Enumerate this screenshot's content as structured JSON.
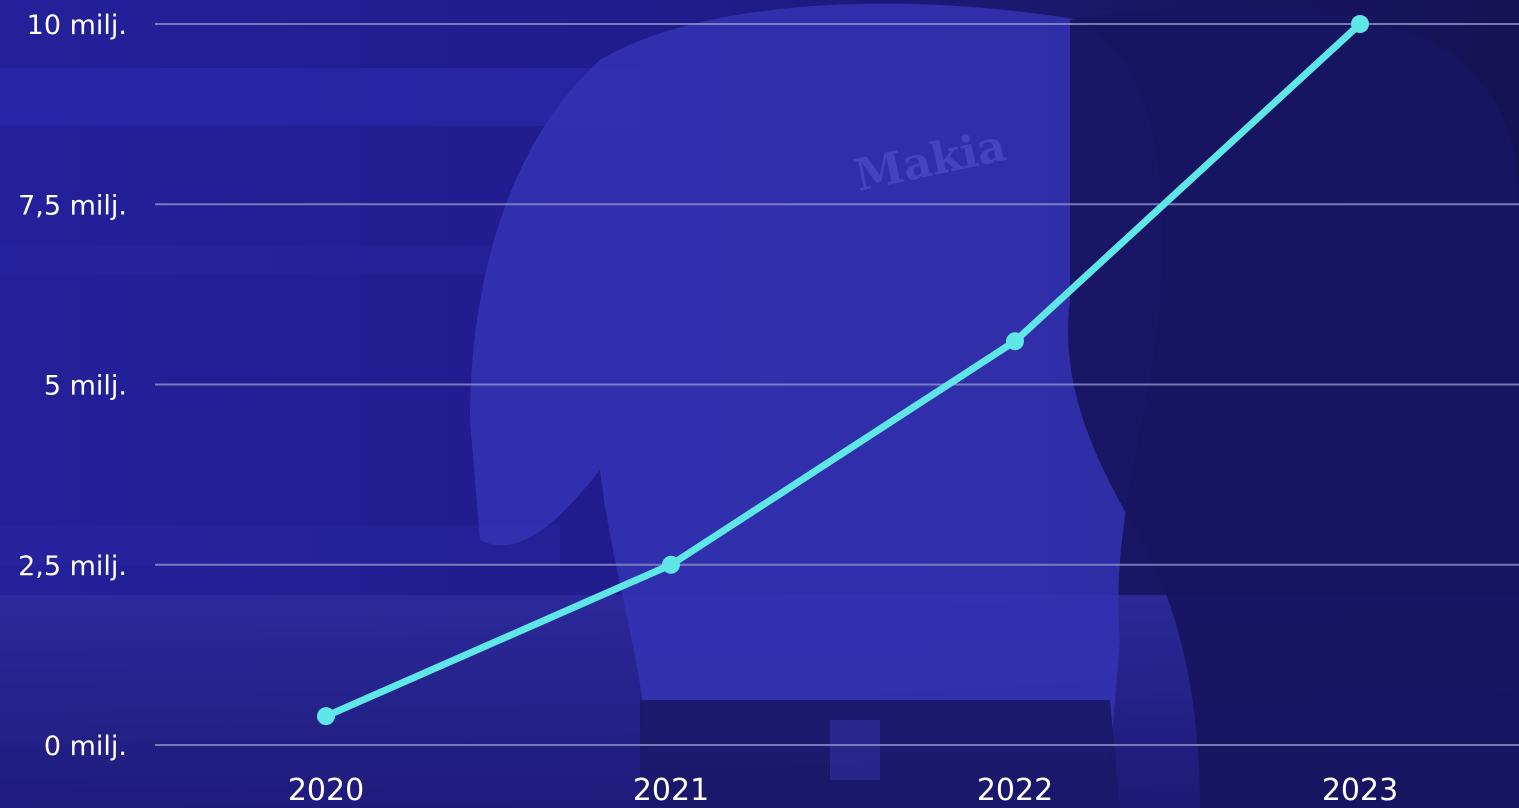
{
  "background": {
    "photo_icon": "people-photo-icon",
    "shirt_logo": "Makia"
  },
  "colors": {
    "background": "#1d1a80",
    "line": "#5fe6e6",
    "grid": "#8a8ac4",
    "text": "#ffffff"
  },
  "chart_data": {
    "type": "line",
    "x": [
      "2020",
      "2021",
      "2022",
      "2023"
    ],
    "series": [
      {
        "values": [
          0.4,
          2.5,
          5.6,
          10
        ]
      }
    ],
    "ylim": [
      0,
      10
    ],
    "yticks": [
      {
        "value": 0,
        "label": "0 milj."
      },
      {
        "value": 2.5,
        "label": "2,5 milj."
      },
      {
        "value": 5,
        "label": "5 milj."
      },
      {
        "value": 7.5,
        "label": "7,5 milj."
      },
      {
        "value": 10,
        "label": "10 milj."
      }
    ],
    "grid": true,
    "legend": "none"
  }
}
